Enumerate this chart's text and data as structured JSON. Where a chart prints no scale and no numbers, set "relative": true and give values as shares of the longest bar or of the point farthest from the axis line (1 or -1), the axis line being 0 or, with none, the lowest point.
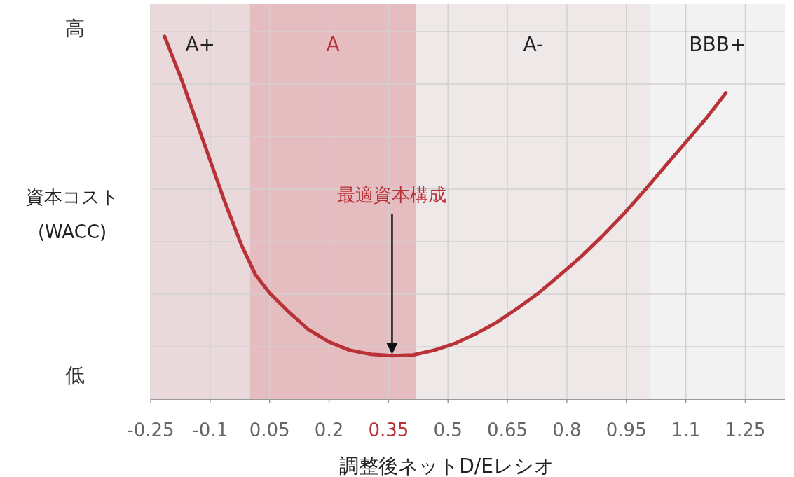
{
  "chart_data": {
    "type": "line",
    "relative": true,
    "xlabel": "調整後ネットD/Eレシオ",
    "ylabel": "資本コスト\n(WACC)",
    "xlim": [
      -0.25,
      1.35
    ],
    "xticks": [
      -0.25,
      -0.1,
      0.05,
      0.2,
      0.35,
      0.5,
      0.65,
      0.8,
      0.95,
      1.1,
      1.25
    ],
    "grid": true,
    "line_style": "solid",
    "series": [
      {
        "color": "#b83238",
        "x": [
          -0.215,
          -0.171,
          -0.118,
          -0.065,
          -0.021,
          0.015,
          0.05,
          0.094,
          0.147,
          0.2,
          0.253,
          0.306,
          0.359,
          0.412,
          0.465,
          0.518,
          0.571,
          0.623,
          0.676,
          0.729,
          0.782,
          0.835,
          0.888,
          0.941,
          0.994,
          1.047,
          1.1,
          1.153,
          1.201
        ],
        "values": [
          1.0,
          0.878,
          0.714,
          0.55,
          0.425,
          0.342,
          0.293,
          0.245,
          0.193,
          0.158,
          0.135,
          0.124,
          0.12,
          0.122,
          0.135,
          0.154,
          0.181,
          0.212,
          0.251,
          0.293,
          0.342,
          0.392,
          0.448,
          0.508,
          0.573,
          0.641,
          0.708,
          0.776,
          0.844
        ]
      }
    ],
    "bands": [
      {
        "axis": "x",
        "from": -0.25,
        "to": 0.0,
        "label": "A+",
        "color": "#e9d9da"
      },
      {
        "axis": "x",
        "from": 0.0,
        "to": 0.42,
        "label": "A",
        "color": "#e5bcc0"
      },
      {
        "axis": "x",
        "from": 0.42,
        "to": 1.01,
        "label": "A-",
        "color": "#efe8e8"
      },
      {
        "axis": "x",
        "from": 1.01,
        "to": 1.35,
        "label": "BBB+",
        "color": "#f2f2f2"
      }
    ],
    "annotations": [
      "高",
      "低",
      "最適資本構成"
    ]
  }
}
